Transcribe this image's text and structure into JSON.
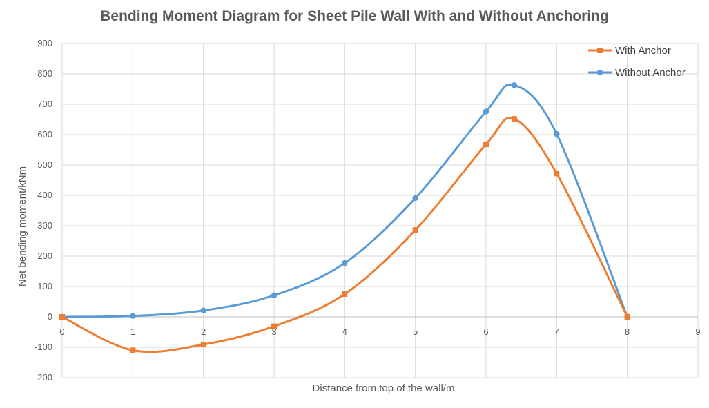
{
  "chart_data": {
    "type": "line",
    "title": "Bending Moment Diagram for Sheet Pile Wall With and Without Anchoring",
    "xlabel": "Distance from top of the wall/m",
    "ylabel": "Net bending moment/kNm",
    "xlim": [
      0,
      9
    ],
    "ylim": [
      -200,
      900
    ],
    "x_ticks": [
      0,
      1,
      2,
      3,
      4,
      5,
      6,
      7,
      8,
      9
    ],
    "y_ticks": [
      -200,
      -100,
      0,
      100,
      200,
      300,
      400,
      500,
      600,
      700,
      800,
      900
    ],
    "grid": true,
    "legend_position": "top-right",
    "series": [
      {
        "name": "With Anchor",
        "color": "#ED7D31",
        "marker": "square",
        "points": [
          [
            0,
            0
          ],
          [
            1,
            -110
          ],
          [
            2,
            -91
          ],
          [
            3,
            -31
          ],
          [
            4,
            75
          ],
          [
            5,
            286
          ],
          [
            6,
            568
          ],
          [
            6.4,
            652
          ],
          [
            7,
            472
          ],
          [
            8,
            0
          ]
        ]
      },
      {
        "name": "Without Anchor",
        "color": "#5B9BD5",
        "marker": "circle",
        "points": [
          [
            0,
            0
          ],
          [
            1,
            3
          ],
          [
            2,
            21
          ],
          [
            3,
            71
          ],
          [
            4,
            177
          ],
          [
            5,
            391
          ],
          [
            6,
            676
          ],
          [
            6.4,
            763
          ],
          [
            7,
            602
          ],
          [
            8,
            0
          ]
        ]
      }
    ]
  }
}
